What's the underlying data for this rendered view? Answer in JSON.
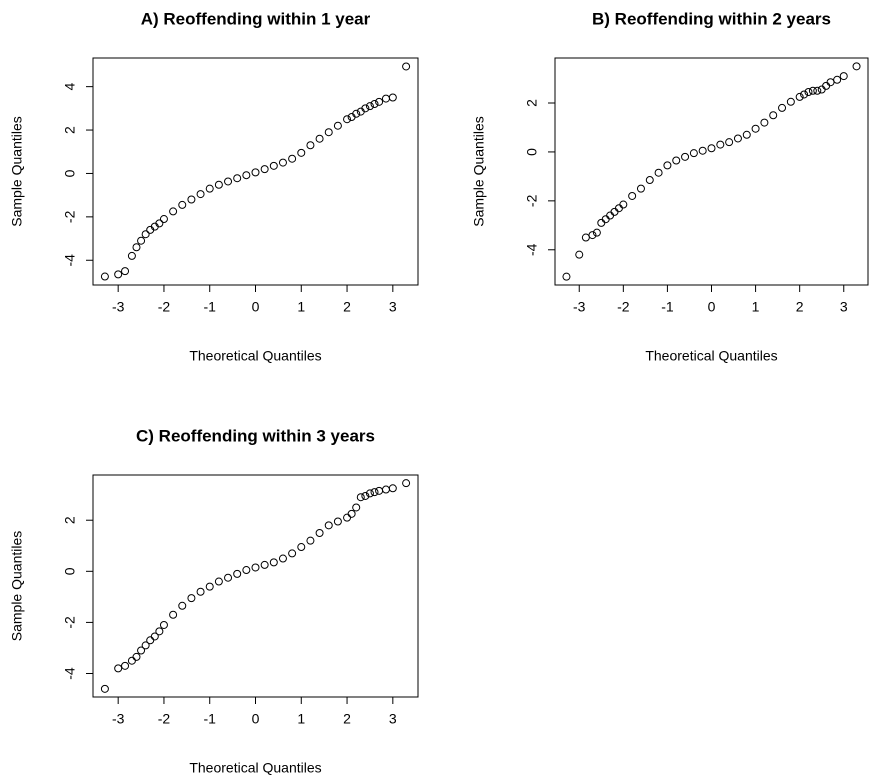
{
  "chart_data": [
    {
      "type": "scatter",
      "title": "A) Reoffending within 1 year",
      "x_label": "Theoretical Quantiles",
      "y_label": "Sample Quantiles",
      "xlim": [
        -3.55,
        3.55
      ],
      "ylim": [
        -5.14,
        5.32
      ],
      "xticks": [
        -3,
        -2,
        -1,
        0,
        1,
        2,
        3
      ],
      "yticks": [
        -4,
        -2,
        0,
        2,
        4
      ],
      "color": "#000000",
      "x": [
        -3.29,
        -3.0,
        -2.85,
        -2.7,
        -2.6,
        -2.5,
        -2.4,
        -2.3,
        -2.2,
        -2.1,
        -2.0,
        -1.8,
        -1.6,
        -1.4,
        -1.2,
        -1.0,
        -0.8,
        -0.6,
        -0.4,
        -0.2,
        0,
        0.2,
        0.4,
        0.6,
        0.8,
        1.0,
        1.2,
        1.4,
        1.6,
        1.8,
        2.0,
        2.1,
        2.2,
        2.3,
        2.4,
        2.5,
        2.6,
        2.7,
        2.85,
        3.0,
        3.29
      ],
      "y": [
        -4.75,
        -4.65,
        -4.5,
        -3.8,
        -3.4,
        -3.1,
        -2.8,
        -2.6,
        -2.45,
        -2.3,
        -2.1,
        -1.75,
        -1.45,
        -1.2,
        -0.95,
        -0.7,
        -0.52,
        -0.37,
        -0.22,
        -0.08,
        0.05,
        0.2,
        0.35,
        0.5,
        0.68,
        0.95,
        1.3,
        1.6,
        1.9,
        2.2,
        2.5,
        2.6,
        2.75,
        2.85,
        3.0,
        3.1,
        3.2,
        3.3,
        3.45,
        3.5,
        4.93
      ]
    },
    {
      "type": "scatter",
      "title": "B) Reoffending within 2 years",
      "x_label": "Theoretical Quantiles",
      "y_label": "Sample Quantiles",
      "xlim": [
        -3.55,
        3.55
      ],
      "ylim": [
        -5.44,
        3.84
      ],
      "xticks": [
        -3,
        -2,
        -1,
        0,
        1,
        2,
        3
      ],
      "yticks": [
        -4,
        -2,
        0,
        2
      ],
      "color": "#000000",
      "x": [
        -3.29,
        -3.0,
        -2.85,
        -2.7,
        -2.6,
        -2.5,
        -2.4,
        -2.3,
        -2.2,
        -2.1,
        -2.0,
        -1.8,
        -1.6,
        -1.4,
        -1.2,
        -1.0,
        -0.8,
        -0.6,
        -0.4,
        -0.2,
        0,
        0.2,
        0.4,
        0.6,
        0.8,
        1.0,
        1.2,
        1.4,
        1.6,
        1.8,
        2.0,
        2.1,
        2.2,
        2.3,
        2.4,
        2.5,
        2.6,
        2.7,
        2.85,
        3.0,
        3.29
      ],
      "y": [
        -5.1,
        -4.2,
        -3.5,
        -3.4,
        -3.3,
        -2.9,
        -2.75,
        -2.6,
        -2.45,
        -2.3,
        -2.15,
        -1.8,
        -1.5,
        -1.15,
        -0.85,
        -0.55,
        -0.35,
        -0.2,
        -0.05,
        0.05,
        0.15,
        0.3,
        0.4,
        0.55,
        0.7,
        0.95,
        1.2,
        1.5,
        1.8,
        2.05,
        2.25,
        2.35,
        2.45,
        2.5,
        2.5,
        2.55,
        2.7,
        2.85,
        2.95,
        3.1,
        3.5
      ]
    },
    {
      "type": "scatter",
      "title": "C) Reoffending within 3 years",
      "x_label": "Theoretical Quantiles",
      "y_label": "Sample Quantiles",
      "xlim": [
        -3.55,
        3.55
      ],
      "ylim": [
        -4.92,
        3.77
      ],
      "xticks": [
        -3,
        -2,
        -1,
        0,
        1,
        2,
        3
      ],
      "yticks": [
        -4,
        -2,
        0,
        2
      ],
      "color": "#000000",
      "x": [
        -3.29,
        -3.0,
        -2.85,
        -2.7,
        -2.6,
        -2.5,
        -2.4,
        -2.3,
        -2.2,
        -2.1,
        -2.0,
        -1.8,
        -1.6,
        -1.4,
        -1.2,
        -1.0,
        -0.8,
        -0.6,
        -0.4,
        -0.2,
        0,
        0.2,
        0.4,
        0.6,
        0.8,
        1.0,
        1.2,
        1.4,
        1.6,
        1.8,
        2.0,
        2.1,
        2.2,
        2.3,
        2.4,
        2.5,
        2.6,
        2.7,
        2.85,
        3.0,
        3.29
      ],
      "y": [
        -4.6,
        -3.8,
        -3.7,
        -3.5,
        -3.35,
        -3.1,
        -2.9,
        -2.7,
        -2.55,
        -2.35,
        -2.1,
        -1.7,
        -1.35,
        -1.05,
        -0.8,
        -0.6,
        -0.4,
        -0.25,
        -0.1,
        0.05,
        0.15,
        0.25,
        0.35,
        0.5,
        0.7,
        0.95,
        1.2,
        1.5,
        1.8,
        1.95,
        2.1,
        2.25,
        2.5,
        2.9,
        2.95,
        3.05,
        3.1,
        3.15,
        3.2,
        3.25,
        3.45
      ]
    }
  ]
}
